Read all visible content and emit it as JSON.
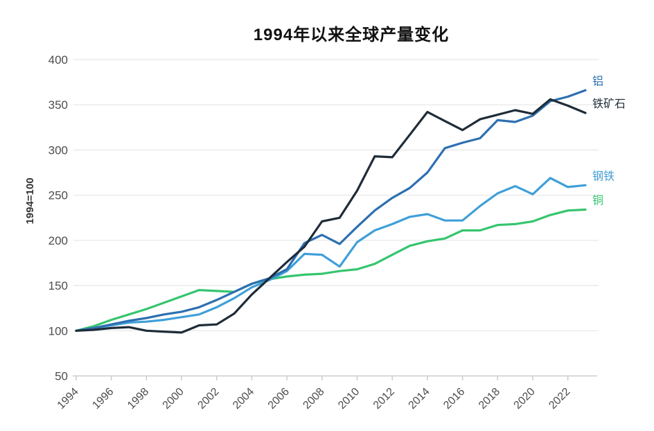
{
  "title": "1994年以来全球产量变化",
  "chart_data": {
    "type": "line",
    "title": "1994年以来全球产量变化",
    "xlabel": "",
    "ylabel": "1994=100",
    "ylim": [
      50,
      400
    ],
    "xlim": [
      1994,
      2023
    ],
    "y_ticks": [
      50,
      100,
      150,
      200,
      250,
      300,
      350,
      400
    ],
    "x_tick_labels": [
      "1994",
      "1996",
      "1998",
      "2000",
      "2002",
      "2004",
      "2006",
      "2008",
      "2010",
      "2012",
      "2014",
      "2016",
      "2018",
      "2020",
      "2022"
    ],
    "grid": "horizontal-light-gray",
    "legend_position": "right-end-of-line-labels",
    "x": [
      1994,
      1995,
      1996,
      1997,
      1998,
      1999,
      2000,
      2001,
      2002,
      2003,
      2004,
      2005,
      2006,
      2007,
      2008,
      2009,
      2010,
      2011,
      2012,
      2013,
      2014,
      2015,
      2016,
      2017,
      2018,
      2019,
      2020,
      2021,
      2022,
      2023
    ],
    "series": [
      {
        "name": "铝",
        "color": "#2d6fb0",
        "values": [
          100,
          103,
          107,
          111,
          114,
          118,
          121,
          126,
          134,
          143,
          152,
          158,
          168,
          197,
          206,
          196,
          215,
          233,
          247,
          258,
          275,
          302,
          308,
          313,
          333,
          331,
          338,
          354,
          359,
          366
        ]
      },
      {
        "name": "铁矿石",
        "color": "#1e2c38",
        "values": [
          100,
          101,
          103,
          104,
          100,
          99,
          98,
          106,
          107,
          119,
          140,
          158,
          176,
          193,
          221,
          225,
          255,
          293,
          292,
          317,
          342,
          332,
          322,
          334,
          339,
          344,
          340,
          356,
          349,
          341
        ]
      },
      {
        "name": "钢铁",
        "color": "#3f9fd8",
        "values": [
          100,
          103,
          106,
          109,
          110,
          112,
          115,
          118,
          126,
          136,
          148,
          156,
          166,
          185,
          184,
          171,
          198,
          211,
          218,
          226,
          229,
          222,
          222,
          238,
          252,
          260,
          251,
          269,
          259,
          261
        ]
      },
      {
        "name": "铜",
        "color": "#35c56e",
        "values": [
          100,
          105,
          112,
          118,
          124,
          131,
          138,
          145,
          144,
          143,
          152,
          157,
          160,
          162,
          163,
          166,
          168,
          174,
          184,
          194,
          199,
          202,
          211,
          211,
          217,
          218,
          221,
          228,
          233,
          234
        ]
      }
    ],
    "axis_color": "#cccccc",
    "grid_color": "#e8e8e8",
    "tick_text_color": "#4d4d4d"
  }
}
